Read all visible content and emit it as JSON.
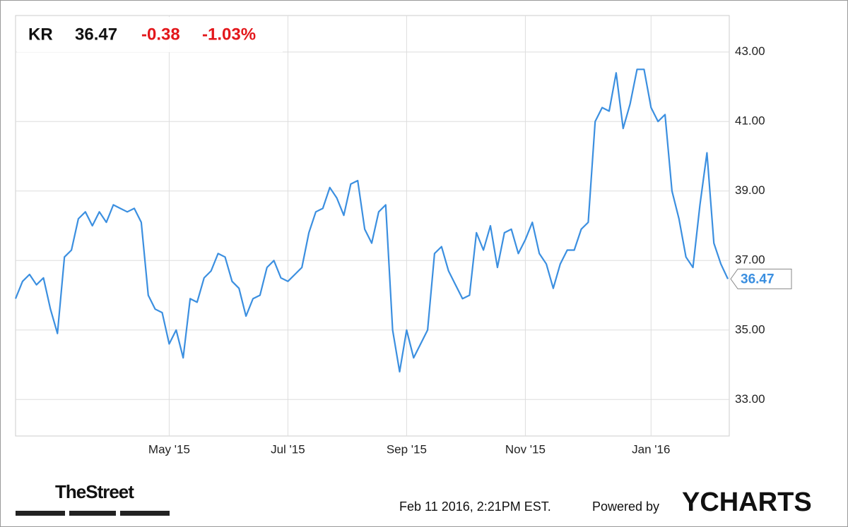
{
  "header": {
    "ticker": "KR",
    "price": "36.47",
    "change": "-0.38",
    "change_pct": "-1.03%"
  },
  "footer": {
    "brand": "TheStreet",
    "timestamp": "Feb 11 2016, 2:21PM EST.",
    "powered": "Powered by",
    "logo": "YCHARTS"
  },
  "chart_data": {
    "type": "line",
    "categories": [
      null,
      null,
      null,
      null,
      null,
      null,
      null,
      null,
      null,
      null,
      null,
      null,
      null,
      null,
      null,
      null,
      null,
      null,
      null,
      null,
      null,
      null,
      "May '15",
      null,
      null,
      null,
      null,
      null,
      null,
      null,
      null,
      null,
      null,
      null,
      null,
      null,
      null,
      null,
      null,
      "Jul '15",
      null,
      null,
      null,
      null,
      null,
      null,
      null,
      null,
      null,
      null,
      null,
      null,
      null,
      null,
      null,
      null,
      "Sep '15",
      null,
      null,
      null,
      null,
      null,
      null,
      null,
      null,
      null,
      null,
      null,
      null,
      null,
      null,
      null,
      null,
      "Nov '15",
      null,
      null,
      null,
      null,
      null,
      null,
      null,
      null,
      null,
      null,
      null,
      null,
      null,
      null,
      null,
      null,
      null,
      "Jan '16",
      null,
      null,
      null,
      null,
      null,
      null,
      null,
      null,
      null,
      null,
      null
    ],
    "series": [
      {
        "name": "KR",
        "color": "#3b8fe0",
        "values": [
          35.9,
          36.4,
          36.6,
          36.3,
          36.5,
          35.6,
          34.9,
          37.1,
          37.3,
          38.2,
          38.4,
          38.0,
          38.4,
          38.1,
          38.6,
          38.5,
          38.4,
          38.5,
          38.1,
          36.0,
          35.6,
          35.5,
          34.6,
          35.0,
          34.2,
          35.9,
          35.8,
          36.5,
          36.7,
          37.2,
          37.1,
          36.4,
          36.2,
          35.4,
          35.9,
          36.0,
          36.8,
          37.0,
          36.5,
          36.4,
          36.6,
          36.8,
          37.8,
          38.4,
          38.5,
          39.1,
          38.8,
          38.3,
          39.2,
          39.3,
          37.9,
          37.5,
          38.4,
          38.6,
          35.0,
          33.8,
          35.0,
          34.2,
          34.6,
          35.0,
          37.2,
          37.4,
          36.7,
          36.3,
          35.9,
          36.0,
          37.8,
          37.3,
          38.0,
          36.8,
          37.8,
          37.9,
          37.2,
          37.6,
          38.1,
          37.2,
          36.9,
          36.2,
          36.9,
          37.3,
          37.3,
          37.9,
          38.1,
          41.0,
          41.4,
          41.3,
          42.4,
          40.8,
          41.5,
          42.5,
          42.5,
          41.4,
          41.0,
          41.2,
          39.0,
          38.2,
          37.1,
          36.8,
          38.6,
          40.1,
          37.5,
          36.9,
          36.47
        ]
      }
    ],
    "ylim": [
      31.95,
      44.05
    ],
    "yticks": [
      {
        "value": 33,
        "label": "33.00"
      },
      {
        "value": 35,
        "label": "35.00"
      },
      {
        "value": 37,
        "label": "37.00"
      },
      {
        "value": 39,
        "label": "39.00"
      },
      {
        "value": 41,
        "label": "41.00"
      },
      {
        "value": 43,
        "label": "43.00"
      }
    ],
    "grid": true
  }
}
